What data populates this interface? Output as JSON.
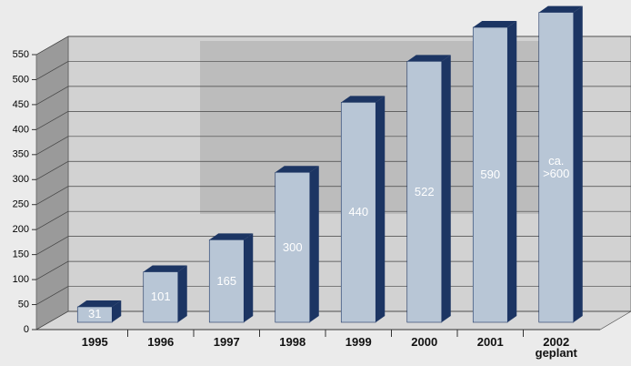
{
  "chart_data": {
    "type": "bar3d",
    "categories": [
      "1995",
      "1996",
      "1997",
      "1998",
      "1999",
      "2000",
      "2001",
      "2002\ngeplant"
    ],
    "values": [
      31,
      101,
      165,
      300,
      440,
      522,
      590,
      620
    ],
    "value_labels": [
      "31",
      "101",
      "165",
      "300",
      "440",
      "522",
      "590",
      "ca.\n>600"
    ],
    "color": "#b8c6d6",
    "side_color": "#1c3563",
    "ylim": [
      0,
      550
    ],
    "yticks": [
      0,
      50,
      100,
      150,
      200,
      250,
      300,
      350,
      400,
      450,
      500,
      550
    ],
    "grid": true
  }
}
